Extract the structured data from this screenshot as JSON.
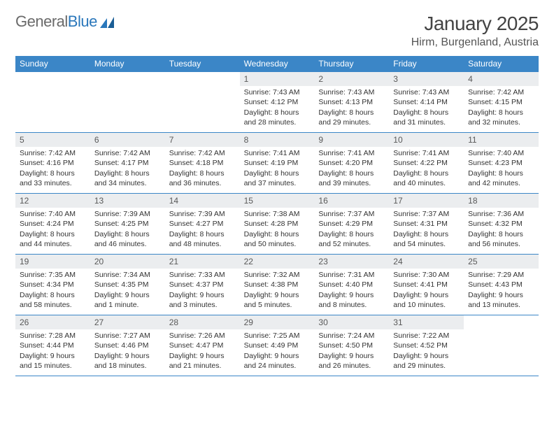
{
  "logo": {
    "word1": "General",
    "word2": "Blue"
  },
  "title": "January 2025",
  "location": "Hirm, Burgenland, Austria",
  "colors": {
    "header_bg": "#3b86c7",
    "header_text": "#ffffff",
    "daynum_bg": "#ebedef",
    "rule": "#3b86c7",
    "logo_gray": "#6a6a6a",
    "logo_blue": "#2a77bb"
  },
  "weekdays": [
    "Sunday",
    "Monday",
    "Tuesday",
    "Wednesday",
    "Thursday",
    "Friday",
    "Saturday"
  ],
  "weeks": [
    [
      {
        "n": "",
        "sunrise": "",
        "sunset": "",
        "day1": "",
        "day2": ""
      },
      {
        "n": "",
        "sunrise": "",
        "sunset": "",
        "day1": "",
        "day2": ""
      },
      {
        "n": "",
        "sunrise": "",
        "sunset": "",
        "day1": "",
        "day2": ""
      },
      {
        "n": "1",
        "sunrise": "Sunrise: 7:43 AM",
        "sunset": "Sunset: 4:12 PM",
        "day1": "Daylight: 8 hours",
        "day2": "and 28 minutes."
      },
      {
        "n": "2",
        "sunrise": "Sunrise: 7:43 AM",
        "sunset": "Sunset: 4:13 PM",
        "day1": "Daylight: 8 hours",
        "day2": "and 29 minutes."
      },
      {
        "n": "3",
        "sunrise": "Sunrise: 7:43 AM",
        "sunset": "Sunset: 4:14 PM",
        "day1": "Daylight: 8 hours",
        "day2": "and 31 minutes."
      },
      {
        "n": "4",
        "sunrise": "Sunrise: 7:42 AM",
        "sunset": "Sunset: 4:15 PM",
        "day1": "Daylight: 8 hours",
        "day2": "and 32 minutes."
      }
    ],
    [
      {
        "n": "5",
        "sunrise": "Sunrise: 7:42 AM",
        "sunset": "Sunset: 4:16 PM",
        "day1": "Daylight: 8 hours",
        "day2": "and 33 minutes."
      },
      {
        "n": "6",
        "sunrise": "Sunrise: 7:42 AM",
        "sunset": "Sunset: 4:17 PM",
        "day1": "Daylight: 8 hours",
        "day2": "and 34 minutes."
      },
      {
        "n": "7",
        "sunrise": "Sunrise: 7:42 AM",
        "sunset": "Sunset: 4:18 PM",
        "day1": "Daylight: 8 hours",
        "day2": "and 36 minutes."
      },
      {
        "n": "8",
        "sunrise": "Sunrise: 7:41 AM",
        "sunset": "Sunset: 4:19 PM",
        "day1": "Daylight: 8 hours",
        "day2": "and 37 minutes."
      },
      {
        "n": "9",
        "sunrise": "Sunrise: 7:41 AM",
        "sunset": "Sunset: 4:20 PM",
        "day1": "Daylight: 8 hours",
        "day2": "and 39 minutes."
      },
      {
        "n": "10",
        "sunrise": "Sunrise: 7:41 AM",
        "sunset": "Sunset: 4:22 PM",
        "day1": "Daylight: 8 hours",
        "day2": "and 40 minutes."
      },
      {
        "n": "11",
        "sunrise": "Sunrise: 7:40 AM",
        "sunset": "Sunset: 4:23 PM",
        "day1": "Daylight: 8 hours",
        "day2": "and 42 minutes."
      }
    ],
    [
      {
        "n": "12",
        "sunrise": "Sunrise: 7:40 AM",
        "sunset": "Sunset: 4:24 PM",
        "day1": "Daylight: 8 hours",
        "day2": "and 44 minutes."
      },
      {
        "n": "13",
        "sunrise": "Sunrise: 7:39 AM",
        "sunset": "Sunset: 4:25 PM",
        "day1": "Daylight: 8 hours",
        "day2": "and 46 minutes."
      },
      {
        "n": "14",
        "sunrise": "Sunrise: 7:39 AM",
        "sunset": "Sunset: 4:27 PM",
        "day1": "Daylight: 8 hours",
        "day2": "and 48 minutes."
      },
      {
        "n": "15",
        "sunrise": "Sunrise: 7:38 AM",
        "sunset": "Sunset: 4:28 PM",
        "day1": "Daylight: 8 hours",
        "day2": "and 50 minutes."
      },
      {
        "n": "16",
        "sunrise": "Sunrise: 7:37 AM",
        "sunset": "Sunset: 4:29 PM",
        "day1": "Daylight: 8 hours",
        "day2": "and 52 minutes."
      },
      {
        "n": "17",
        "sunrise": "Sunrise: 7:37 AM",
        "sunset": "Sunset: 4:31 PM",
        "day1": "Daylight: 8 hours",
        "day2": "and 54 minutes."
      },
      {
        "n": "18",
        "sunrise": "Sunrise: 7:36 AM",
        "sunset": "Sunset: 4:32 PM",
        "day1": "Daylight: 8 hours",
        "day2": "and 56 minutes."
      }
    ],
    [
      {
        "n": "19",
        "sunrise": "Sunrise: 7:35 AM",
        "sunset": "Sunset: 4:34 PM",
        "day1": "Daylight: 8 hours",
        "day2": "and 58 minutes."
      },
      {
        "n": "20",
        "sunrise": "Sunrise: 7:34 AM",
        "sunset": "Sunset: 4:35 PM",
        "day1": "Daylight: 9 hours",
        "day2": "and 1 minute."
      },
      {
        "n": "21",
        "sunrise": "Sunrise: 7:33 AM",
        "sunset": "Sunset: 4:37 PM",
        "day1": "Daylight: 9 hours",
        "day2": "and 3 minutes."
      },
      {
        "n": "22",
        "sunrise": "Sunrise: 7:32 AM",
        "sunset": "Sunset: 4:38 PM",
        "day1": "Daylight: 9 hours",
        "day2": "and 5 minutes."
      },
      {
        "n": "23",
        "sunrise": "Sunrise: 7:31 AM",
        "sunset": "Sunset: 4:40 PM",
        "day1": "Daylight: 9 hours",
        "day2": "and 8 minutes."
      },
      {
        "n": "24",
        "sunrise": "Sunrise: 7:30 AM",
        "sunset": "Sunset: 4:41 PM",
        "day1": "Daylight: 9 hours",
        "day2": "and 10 minutes."
      },
      {
        "n": "25",
        "sunrise": "Sunrise: 7:29 AM",
        "sunset": "Sunset: 4:43 PM",
        "day1": "Daylight: 9 hours",
        "day2": "and 13 minutes."
      }
    ],
    [
      {
        "n": "26",
        "sunrise": "Sunrise: 7:28 AM",
        "sunset": "Sunset: 4:44 PM",
        "day1": "Daylight: 9 hours",
        "day2": "and 15 minutes."
      },
      {
        "n": "27",
        "sunrise": "Sunrise: 7:27 AM",
        "sunset": "Sunset: 4:46 PM",
        "day1": "Daylight: 9 hours",
        "day2": "and 18 minutes."
      },
      {
        "n": "28",
        "sunrise": "Sunrise: 7:26 AM",
        "sunset": "Sunset: 4:47 PM",
        "day1": "Daylight: 9 hours",
        "day2": "and 21 minutes."
      },
      {
        "n": "29",
        "sunrise": "Sunrise: 7:25 AM",
        "sunset": "Sunset: 4:49 PM",
        "day1": "Daylight: 9 hours",
        "day2": "and 24 minutes."
      },
      {
        "n": "30",
        "sunrise": "Sunrise: 7:24 AM",
        "sunset": "Sunset: 4:50 PM",
        "day1": "Daylight: 9 hours",
        "day2": "and 26 minutes."
      },
      {
        "n": "31",
        "sunrise": "Sunrise: 7:22 AM",
        "sunset": "Sunset: 4:52 PM",
        "day1": "Daylight: 9 hours",
        "day2": "and 29 minutes."
      },
      {
        "n": "",
        "sunrise": "",
        "sunset": "",
        "day1": "",
        "day2": ""
      }
    ]
  ]
}
